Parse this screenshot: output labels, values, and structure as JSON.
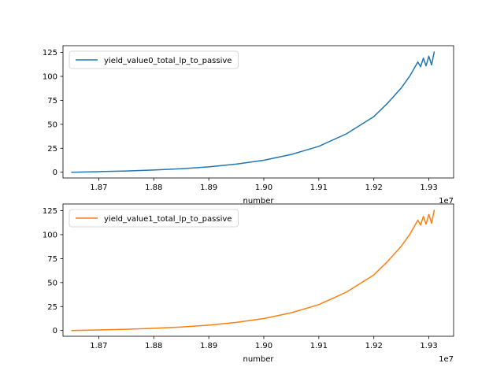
{
  "chart_data": [
    {
      "type": "line",
      "xlabel": "number",
      "ylabel": "",
      "x_offset_label": "1e7",
      "xlim": [
        1.8635,
        1.9345
      ],
      "ylim": [
        -6,
        132
      ],
      "x_ticks": [
        1.87,
        1.88,
        1.89,
        1.9,
        1.91,
        1.92,
        1.93
      ],
      "x_tick_labels": [
        "1.87",
        "1.88",
        "1.89",
        "1.90",
        "1.91",
        "1.92",
        "1.93"
      ],
      "y_ticks": [
        0,
        25,
        50,
        75,
        100,
        125
      ],
      "y_tick_labels": [
        "0",
        "25",
        "50",
        "75",
        "100",
        "125"
      ],
      "legend_position": "upper-left",
      "grid": false,
      "series": [
        {
          "name": "yield_value0_total_lp_to_passive",
          "color": "#1f77b4",
          "x": [
            1.865,
            1.87,
            1.875,
            1.88,
            1.885,
            1.89,
            1.895,
            1.9,
            1.905,
            1.91,
            1.915,
            1.92,
            1.9225,
            1.925,
            1.9265,
            1.9275,
            1.928,
            1.9285,
            1.929,
            1.9295,
            1.93,
            1.9305,
            1.931
          ],
          "y": [
            0,
            0.6,
            1.3,
            2.3,
            3.6,
            5.6,
            8.5,
            12.5,
            18.5,
            27,
            40,
            58,
            72,
            88,
            100,
            110,
            115,
            110,
            119,
            111,
            121,
            112,
            126
          ]
        }
      ]
    },
    {
      "type": "line",
      "xlabel": "number",
      "ylabel": "",
      "x_offset_label": "1e7",
      "xlim": [
        1.8635,
        1.9345
      ],
      "ylim": [
        -6,
        132
      ],
      "x_ticks": [
        1.87,
        1.88,
        1.89,
        1.9,
        1.91,
        1.92,
        1.93
      ],
      "x_tick_labels": [
        "1.87",
        "1.88",
        "1.89",
        "1.90",
        "1.91",
        "1.92",
        "1.93"
      ],
      "y_ticks": [
        0,
        25,
        50,
        75,
        100,
        125
      ],
      "y_tick_labels": [
        "0",
        "25",
        "50",
        "75",
        "100",
        "125"
      ],
      "legend_position": "upper-left",
      "grid": false,
      "series": [
        {
          "name": "yield_value1_total_lp_to_passive",
          "color": "#ff7f0e",
          "x": [
            1.865,
            1.87,
            1.875,
            1.88,
            1.885,
            1.89,
            1.895,
            1.9,
            1.905,
            1.91,
            1.915,
            1.92,
            1.9225,
            1.925,
            1.9265,
            1.9275,
            1.928,
            1.9285,
            1.929,
            1.9295,
            1.93,
            1.9305,
            1.931
          ],
          "y": [
            0,
            0.6,
            1.3,
            2.3,
            3.6,
            5.6,
            8.5,
            12.5,
            18.5,
            27,
            40,
            58,
            72,
            88,
            100,
            110,
            115,
            110,
            119,
            111,
            121,
            112,
            126
          ]
        }
      ]
    }
  ]
}
